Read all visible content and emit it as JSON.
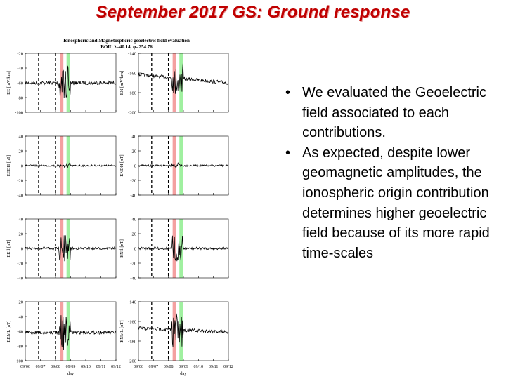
{
  "slide": {
    "title": "September 2017 GS: Ground response",
    "bullets": [
      "We evaluated the Geoelectric field associated to each contributions.",
      "As expected, despite lower geomagnetic amplitudes, the ionospheric origin contribution determines higher geoelectric field because of its more rapid time-scales"
    ],
    "bullet_glyph": "•"
  },
  "figure": {
    "title_line1": "Ionospheric and Magnetospheric geoelectric field evaluation",
    "title_line2": "BOU: λ=40.14, φ=254.76",
    "x_ticks": [
      "09/06",
      "09/07",
      "09/08",
      "09/09",
      "09/10",
      "09/11",
      "09/12"
    ],
    "x_label": "day",
    "red_band_color": "#f4a0a0",
    "green_band_color": "#a0f0a0",
    "rows": [
      {
        "left": {
          "ylabel": "EE [mV/km]",
          "yticks": [
            -20,
            -40,
            -60,
            -80,
            -100
          ]
        },
        "right": {
          "ylabel": "EN [mV/km]",
          "yticks": [
            -140,
            -160,
            -180,
            -200
          ]
        }
      },
      {
        "left": {
          "ylabel": "EEDH [nT]",
          "yticks": [
            40,
            20,
            0,
            -20,
            -40
          ]
        },
        "right": {
          "ylabel": "ENDH [nT]",
          "yticks": [
            40,
            20,
            0,
            -20,
            -40
          ]
        }
      },
      {
        "left": {
          "ylabel": "EEIl [nT]",
          "yticks": [
            40,
            20,
            0,
            -20,
            -40
          ]
        },
        "right": {
          "ylabel": "ENIl [nT]",
          "yticks": [
            40,
            20,
            0,
            -20,
            -40
          ]
        }
      },
      {
        "left": {
          "ylabel": "EEML [nT]",
          "yticks": [
            -20,
            -40,
            -60,
            -80,
            -100
          ]
        },
        "right": {
          "ylabel": "ENML [nT]",
          "yticks": [
            -140,
            -160,
            -180,
            -200
          ]
        }
      }
    ]
  }
}
